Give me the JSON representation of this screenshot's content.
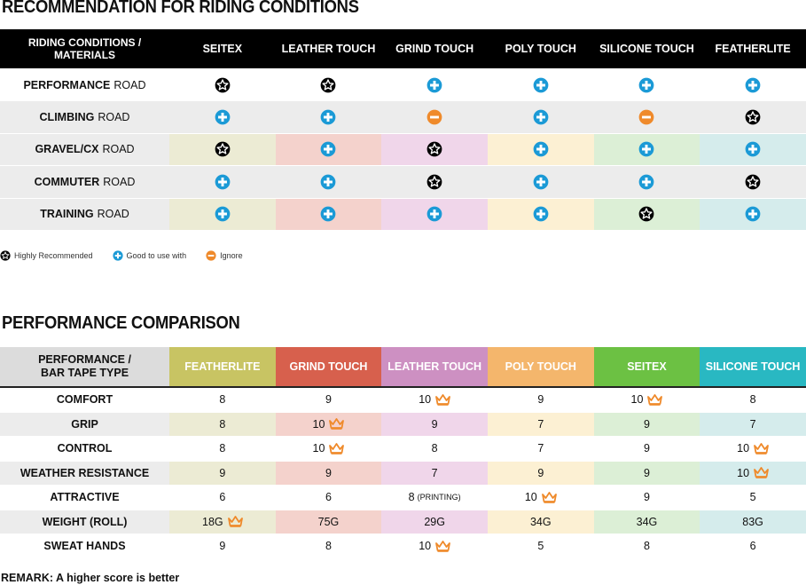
{
  "section1": {
    "title": "RECOMMENDATION FOR RIDING CONDITIONS",
    "header_label": "RIDING CONDITIONS /\nMATERIALS",
    "columns": [
      "SEITEX",
      "LEATHER TOUCH",
      "GRIND TOUCH",
      "POLY TOUCH",
      "SILICONE TOUCH",
      "FEATHERLITE"
    ],
    "column_tints": [
      "#ecebd4",
      "#f4d2cc",
      "#f0d6ea",
      "#fcf0d3",
      "#dcefd6",
      "#d5ecec"
    ],
    "rows": [
      {
        "label_bold": "PERFORMANCE",
        "label_rest": "ROAD",
        "style": "plain",
        "values": [
          "star",
          "star",
          "plus",
          "plus",
          "plus",
          "plus"
        ]
      },
      {
        "label_bold": "CLIMBING",
        "label_rest": "ROAD",
        "style": "grey",
        "values": [
          "plus",
          "plus",
          "minus",
          "plus",
          "minus",
          "star"
        ]
      },
      {
        "label_bold": "GRAVEL/CX",
        "label_rest": "ROAD",
        "style": "tint",
        "values": [
          "star",
          "plus",
          "star",
          "plus",
          "plus",
          "plus"
        ]
      },
      {
        "label_bold": "COMMUTER",
        "label_rest": "ROAD",
        "style": "grey",
        "values": [
          "plus",
          "plus",
          "star",
          "plus",
          "plus",
          "star"
        ]
      },
      {
        "label_bold": "TRAINING",
        "label_rest": "ROAD",
        "style": "tint",
        "values": [
          "plus",
          "plus",
          "plus",
          "plus",
          "star",
          "plus"
        ]
      }
    ],
    "legend": [
      {
        "icon": "star",
        "label": "Highly Recommended"
      },
      {
        "icon": "plus",
        "label": "Good to use with"
      },
      {
        "icon": "minus",
        "label": "Ignore"
      }
    ],
    "colors": {
      "plus": "#1b9ad6",
      "minus": "#ef8a2b",
      "star": "#000000"
    }
  },
  "section2": {
    "title": "PERFORMANCE COMPARISON",
    "header_label": "PERFORMANCE /\nBAR TAPE TYPE",
    "columns": [
      {
        "name": "FEATHERLITE",
        "color": "#c8c463",
        "tint": "#ecebd4"
      },
      {
        "name": "GRIND TOUCH",
        "color": "#d7604d",
        "tint": "#f4d2cc"
      },
      {
        "name": "LEATHER TOUCH",
        "color": "#cd90c2",
        "tint": "#f0d6ea"
      },
      {
        "name": "POLY TOUCH",
        "color": "#f4b66c",
        "tint": "#fcf0d3"
      },
      {
        "name": "SEITEX",
        "color": "#6cc143",
        "tint": "#dcefd6"
      },
      {
        "name": "SILICONE TOUCH",
        "color": "#29b8c2",
        "tint": "#d5ecec"
      }
    ],
    "rows": [
      {
        "label": "COMFORT",
        "tinted": false,
        "values": [
          {
            "v": "8"
          },
          {
            "v": "9"
          },
          {
            "v": "10",
            "crown": true
          },
          {
            "v": "9"
          },
          {
            "v": "10",
            "crown": true
          },
          {
            "v": "8"
          }
        ]
      },
      {
        "label": "GRIP",
        "tinted": true,
        "values": [
          {
            "v": "8"
          },
          {
            "v": "10",
            "crown": true
          },
          {
            "v": "9"
          },
          {
            "v": "7"
          },
          {
            "v": "9"
          },
          {
            "v": "7"
          }
        ]
      },
      {
        "label": "CONTROL",
        "tinted": false,
        "values": [
          {
            "v": "8"
          },
          {
            "v": "10",
            "crown": true
          },
          {
            "v": "8"
          },
          {
            "v": "7"
          },
          {
            "v": "9"
          },
          {
            "v": "10",
            "crown": true
          }
        ]
      },
      {
        "label": "WEATHER RESISTANCE",
        "tinted": true,
        "values": [
          {
            "v": "9"
          },
          {
            "v": "9"
          },
          {
            "v": "7"
          },
          {
            "v": "9"
          },
          {
            "v": "9"
          },
          {
            "v": "10",
            "crown": true
          }
        ]
      },
      {
        "label": "ATTRACTIVE",
        "tinted": false,
        "values": [
          {
            "v": "6"
          },
          {
            "v": "6"
          },
          {
            "v": "8",
            "note": "(PRINTING)"
          },
          {
            "v": "10",
            "crown": true
          },
          {
            "v": "9"
          },
          {
            "v": "5"
          }
        ]
      },
      {
        "label": "WEIGHT (ROLL)",
        "tinted": true,
        "values": [
          {
            "v": "18G",
            "crown": true
          },
          {
            "v": "75G"
          },
          {
            "v": "29G"
          },
          {
            "v": "34G"
          },
          {
            "v": "34G"
          },
          {
            "v": "83G"
          }
        ]
      },
      {
        "label": "SWEAT HANDS",
        "tinted": false,
        "values": [
          {
            "v": "9"
          },
          {
            "v": "8"
          },
          {
            "v": "10",
            "crown": true
          },
          {
            "v": "5"
          },
          {
            "v": "8"
          },
          {
            "v": "6"
          }
        ]
      }
    ],
    "crown_color": "#ef8a2b",
    "remark": "REMARK: A higher score is better"
  }
}
